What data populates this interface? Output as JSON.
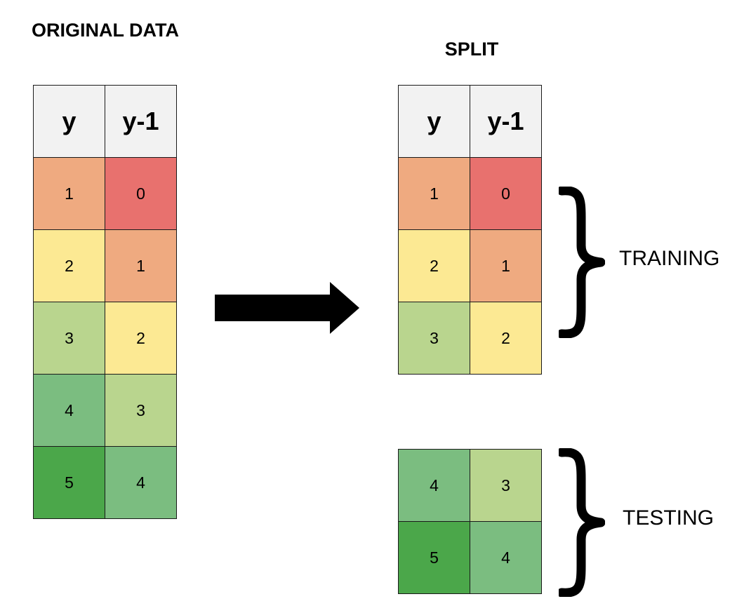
{
  "titles": {
    "original": "ORIGINAL DATA",
    "split": "SPLIT"
  },
  "headers": {
    "y": "y",
    "y_lag": "y-1"
  },
  "colors": {
    "v0": "#e8716e",
    "v1": "#efaa80",
    "v2": "#fce993",
    "v3": "#b9d58e",
    "v4": "#7bbd80",
    "v5": "#4ba74a"
  },
  "original": [
    {
      "y": "1",
      "y_lag": "0"
    },
    {
      "y": "2",
      "y_lag": "1"
    },
    {
      "y": "3",
      "y_lag": "2"
    },
    {
      "y": "4",
      "y_lag": "3"
    },
    {
      "y": "5",
      "y_lag": "4"
    }
  ],
  "training": [
    {
      "y": "1",
      "y_lag": "0"
    },
    {
      "y": "2",
      "y_lag": "1"
    },
    {
      "y": "3",
      "y_lag": "2"
    }
  ],
  "testing": [
    {
      "y": "4",
      "y_lag": "3"
    },
    {
      "y": "5",
      "y_lag": "4"
    }
  ],
  "labels": {
    "training": "TRAINING",
    "testing": "TESTING"
  },
  "icons": {
    "arrow": "right-arrow-icon",
    "brace": "right-curly-brace-icon"
  }
}
